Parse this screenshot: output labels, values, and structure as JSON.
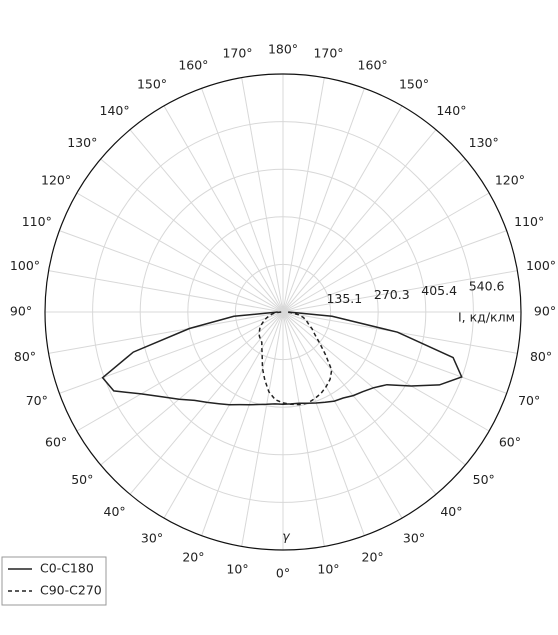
{
  "chart_data": {
    "type": "polar",
    "angle_label": "γ",
    "radial_label": "I, кд/клм",
    "rlim": [
      0,
      675.75
    ],
    "rticks": [
      135.1,
      270.3,
      405.4,
      540.6
    ],
    "grid": true,
    "angle_ticks": [
      {
        "value": 0,
        "label": "0°"
      },
      {
        "value": 10,
        "label": "10°"
      },
      {
        "value": 20,
        "label": "20°"
      },
      {
        "value": 30,
        "label": "30°"
      },
      {
        "value": 40,
        "label": "40°"
      },
      {
        "value": 50,
        "label": "50°"
      },
      {
        "value": 60,
        "label": "60°"
      },
      {
        "value": 70,
        "label": "70°"
      },
      {
        "value": 80,
        "label": "80°"
      },
      {
        "value": 90,
        "label": "90°"
      },
      {
        "value": 100,
        "label": "100°"
      },
      {
        "value": 110,
        "label": "110°"
      },
      {
        "value": 120,
        "label": "120°"
      },
      {
        "value": 130,
        "label": "130°"
      },
      {
        "value": 140,
        "label": "140°"
      },
      {
        "value": 150,
        "label": "150°"
      },
      {
        "value": 160,
        "label": "160°"
      },
      {
        "value": 170,
        "label": "170°"
      },
      {
        "value": 180,
        "label": "180°"
      }
    ],
    "x": [
      -90,
      -85,
      -80,
      -75,
      -70,
      -65,
      -60,
      -55,
      -50,
      -45,
      -40,
      -35,
      -30,
      -25,
      -20,
      -15,
      -10,
      -5,
      0,
      5,
      10,
      15,
      20,
      25,
      30,
      35,
      40,
      45,
      50,
      55,
      60,
      65,
      70,
      75,
      80,
      85,
      90
    ],
    "series": [
      {
        "name": "C0-C180",
        "color": "#222222",
        "dash": "none",
        "values": [
          15,
          140,
          270,
          440,
          545,
          530,
          465,
          420,
          385,
          355,
          335,
          318,
          304,
          290,
          280,
          272,
          266,
          262,
          262,
          262,
          263,
          268,
          275,
          283,
          292,
          298,
          310,
          320,
          335,
          360,
          420,
          490,
          540,
          500,
          330,
          140,
          15
        ]
      },
      {
        "name": "C90-C270",
        "color": "#222222",
        "dash": "4 3",
        "values": [
          5,
          20,
          30,
          40,
          50,
          60,
          70,
          80,
          88,
          95,
          100,
          105,
          120,
          140,
          170,
          200,
          230,
          250,
          258,
          263,
          267,
          268,
          262,
          255,
          245,
          233,
          215,
          170,
          135,
          110,
          95,
          80,
          70,
          60,
          45,
          25,
          10
        ]
      }
    ],
    "legend": "lower left"
  }
}
